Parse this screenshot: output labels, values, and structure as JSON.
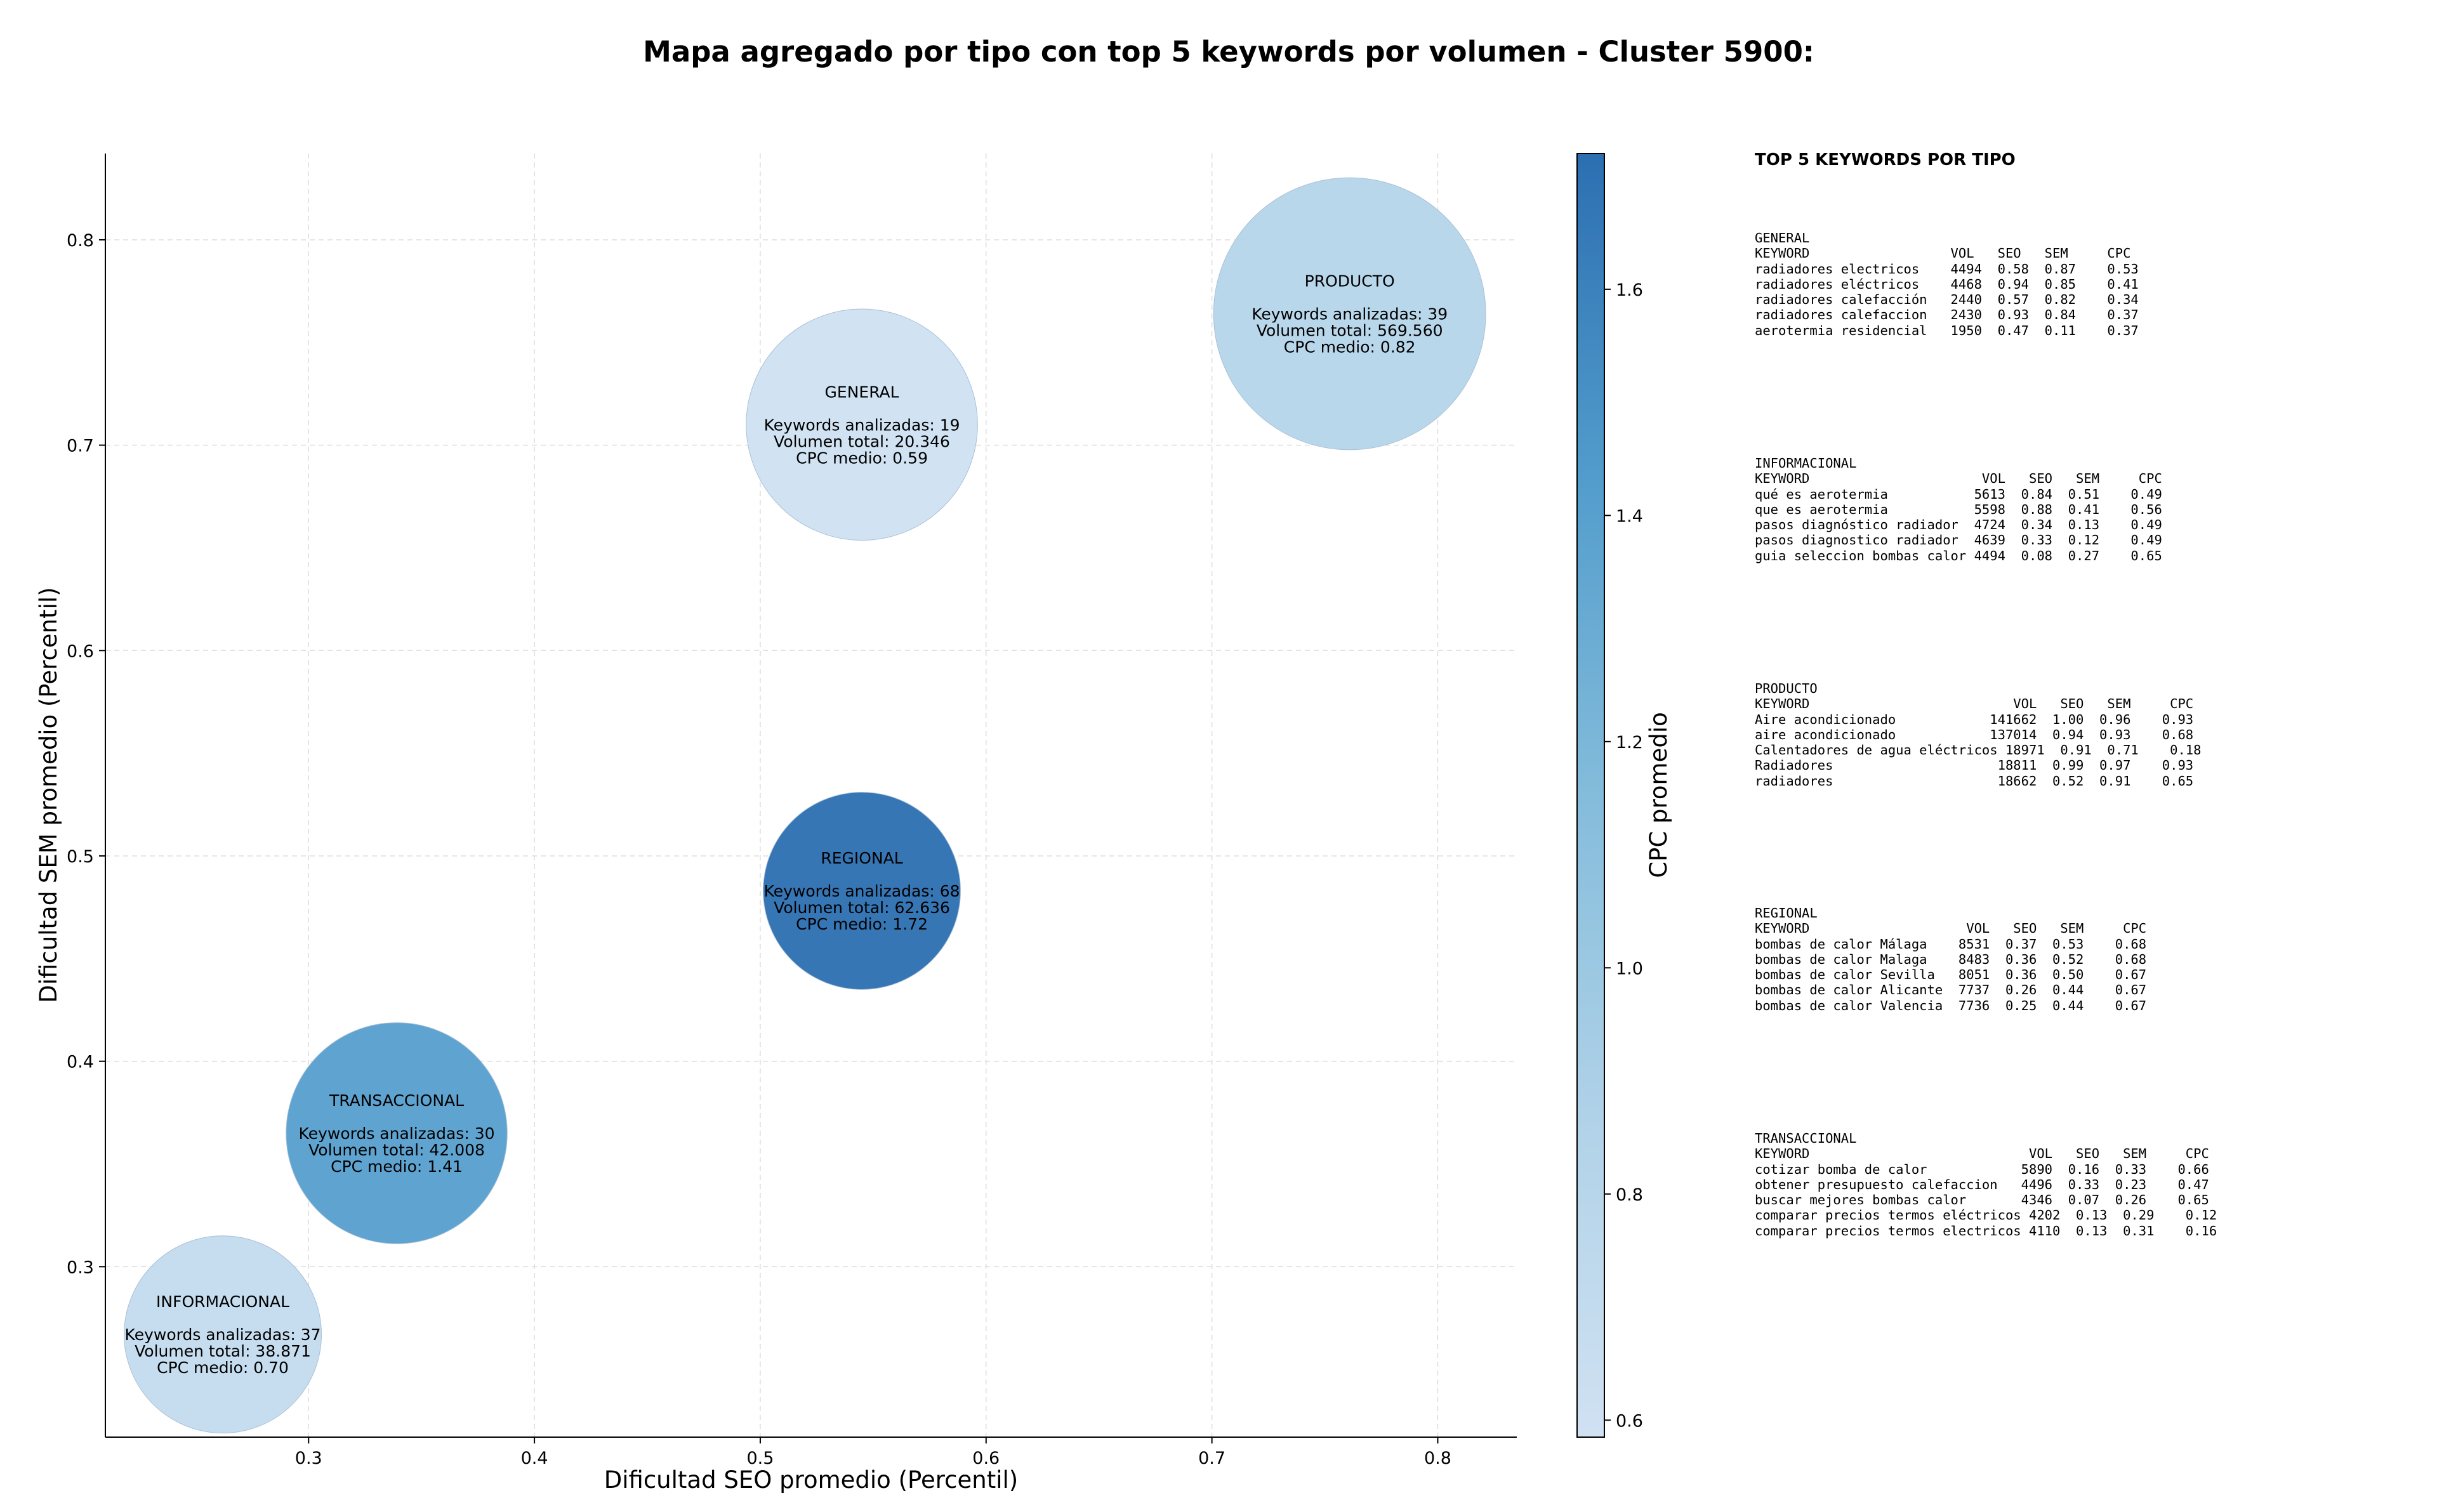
{
  "title": "Mapa agregado por tipo con top 5 keywords por volumen - Cluster 5900:",
  "chart_data": {
    "type": "scatter",
    "subtype": "bubble",
    "xlabel": "Dificultad SEO promedio (Percentil)",
    "ylabel": "Dificultad SEM promedio (Percentil)",
    "xlim": [
      0.21,
      0.835
    ],
    "ylim": [
      0.217,
      0.842
    ],
    "x_ticks": [
      "0.3",
      "0.4",
      "0.5",
      "0.6",
      "0.7",
      "0.8"
    ],
    "y_ticks": [
      "0.3",
      "0.4",
      "0.5",
      "0.6",
      "0.7",
      "0.8"
    ],
    "grid": true,
    "colorbar": {
      "label": "CPC promedio",
      "range": [
        0.585,
        1.72
      ],
      "ticks": [
        "0.6",
        "0.8",
        "1.0",
        "1.2",
        "1.4",
        "1.6"
      ],
      "colormap": "Blues",
      "color_low": "#d0e1f2",
      "color_high": "#2c6fb1"
    },
    "bubbles": [
      {
        "tipo": "INFORMACIONAL",
        "x": 0.262,
        "y": 0.267,
        "cpc": 0.7,
        "keywords": 37,
        "volumen": "38.871",
        "size_rel": 0.58,
        "lines": [
          "INFORMACIONAL",
          "",
          "Keywords analizadas: 37",
          "Volumen total: 38.871",
          "CPC medio: 0.70"
        ]
      },
      {
        "tipo": "TRANSACCIONAL",
        "x": 0.339,
        "y": 0.365,
        "cpc": 1.41,
        "keywords": 30,
        "volumen": "42.008",
        "size_rel": 0.65,
        "lines": [
          "TRANSACCIONAL",
          "",
          "Keywords analizadas: 30",
          "Volumen total: 42.008",
          "CPC medio: 1.41"
        ]
      },
      {
        "tipo": "REGIONAL",
        "x": 0.545,
        "y": 0.483,
        "cpc": 1.72,
        "keywords": 68,
        "volumen": "62.636",
        "size_rel": 0.58,
        "lines": [
          "REGIONAL",
          "",
          "Keywords analizadas: 68",
          "Volumen total: 62.636",
          "CPC medio: 1.72"
        ]
      },
      {
        "tipo": "GENERAL",
        "x": 0.545,
        "y": 0.71,
        "cpc": 0.59,
        "keywords": 19,
        "volumen": "20.346",
        "size_rel": 0.68,
        "lines": [
          "GENERAL",
          "",
          "Keywords analizadas: 19",
          "Volumen total: 20.346",
          "CPC medio: 0.59"
        ]
      },
      {
        "tipo": "PRODUCTO",
        "x": 0.761,
        "y": 0.764,
        "cpc": 0.82,
        "keywords": 39,
        "volumen": "569.560",
        "size_rel": 0.8,
        "lines": [
          "PRODUCTO",
          "",
          "Keywords analizadas: 39",
          "Volumen total: 569.560",
          "CPC medio: 0.82"
        ]
      }
    ]
  },
  "panel": {
    "heading": "TOP 5 KEYWORDS POR TIPO",
    "blocks": [
      {
        "name": "GENERAL",
        "text": "GENERAL\nKEYWORD                  VOL   SEO   SEM     CPC\nradiadores electricos    4494  0.58  0.87    0.53\nradiadores eléctricos    4468  0.94  0.85    0.41\nradiadores calefacción   2440  0.57  0.82    0.34\nradiadores calefaccion   2430  0.93  0.84    0.37\naerotermia residencial   1950  0.47  0.11    0.37"
      },
      {
        "name": "INFORMACIONAL",
        "text": "INFORMACIONAL\nKEYWORD                      VOL   SEO   SEM     CPC\nqué es aerotermia           5613  0.84  0.51    0.49\nque es aerotermia           5598  0.88  0.41    0.56\npasos diagnóstico radiador  4724  0.34  0.13    0.49\npasos diagnostico radiador  4639  0.33  0.12    0.49\nguia seleccion bombas calor 4494  0.08  0.27    0.65"
      },
      {
        "name": "PRODUCTO",
        "text": "PRODUCTO\nKEYWORD                          VOL   SEO   SEM     CPC\nAire acondicionado            141662  1.00  0.96    0.93\naire acondicionado            137014  0.94  0.93    0.68\nCalentadores de agua eléctricos 18971  0.91  0.71    0.18\nRadiadores                     18811  0.99  0.97    0.93\nradiadores                     18662  0.52  0.91    0.65"
      },
      {
        "name": "REGIONAL",
        "text": "REGIONAL\nKEYWORD                    VOL   SEO   SEM     CPC\nbombas de calor Málaga    8531  0.37  0.53    0.68\nbombas de calor Malaga    8483  0.36  0.52    0.68\nbombas de calor Sevilla   8051  0.36  0.50    0.67\nbombas de calor Alicante  7737  0.26  0.44    0.67\nbombas de calor Valencia  7736  0.25  0.44    0.67"
      },
      {
        "name": "TRANSACCIONAL",
        "text": "TRANSACCIONAL\nKEYWORD                            VOL   SEO   SEM     CPC\ncotizar bomba de calor            5890  0.16  0.33    0.66\nobtener presupuesto calefaccion   4496  0.33  0.23    0.47\nbuscar mejores bombas calor       4346  0.07  0.26    0.65\ncomparar precios termos eléctricos 4202  0.13  0.29    0.12\ncomparar precios termos electricos 4110  0.13  0.31    0.16"
      }
    ]
  }
}
